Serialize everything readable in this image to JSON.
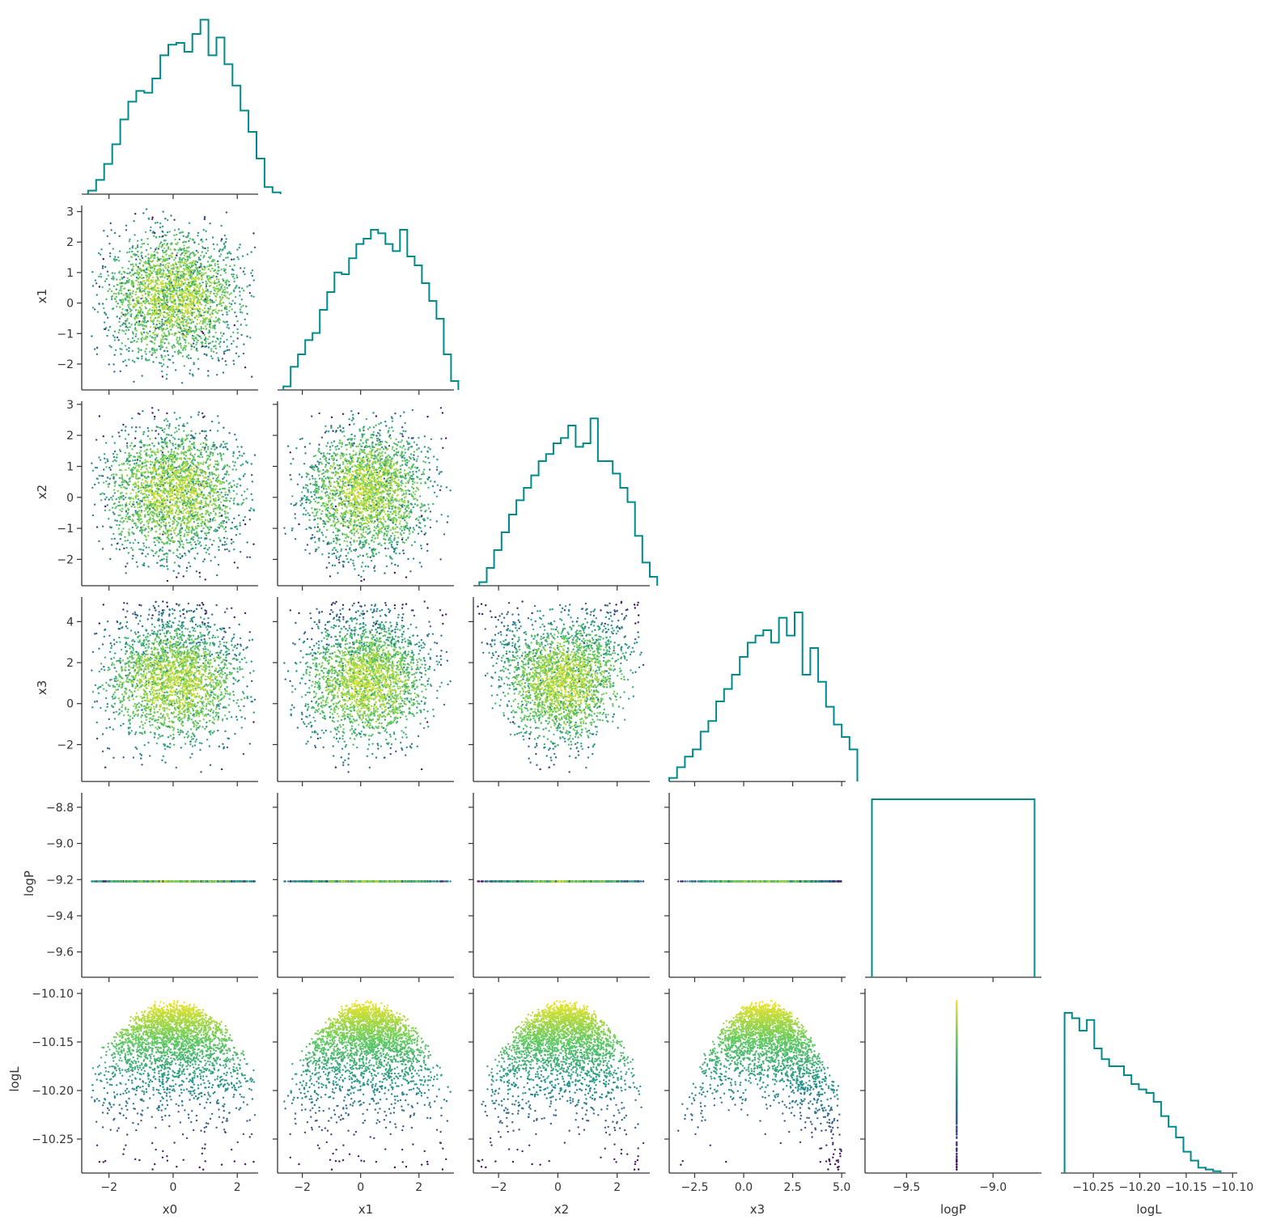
{
  "chart_data": {
    "type": "scatter",
    "variables": [
      "x0",
      "x1",
      "x2",
      "x3",
      "logP",
      "logL"
    ],
    "axis_labels": {
      "x": [
        "x0",
        "x1",
        "x2",
        "x3",
        "logP",
        "logL"
      ],
      "y": [
        "",
        "x1",
        "x2",
        "x3",
        "logP",
        "logL"
      ]
    },
    "ranges": {
      "x0": [
        -2.85,
        2.65
      ],
      "x1": [
        -2.85,
        3.2
      ],
      "x2": [
        -2.85,
        3.1
      ],
      "x3": [
        -3.8,
        5.2
      ],
      "logP": [
        -9.74,
        -8.72
      ],
      "logL": [
        -10.285,
        -10.095
      ]
    },
    "ticks": {
      "x0": [
        -2,
        0,
        2
      ],
      "x1": [
        -2,
        -1,
        0,
        1,
        2,
        3
      ],
      "x2": [
        -2,
        -1,
        0,
        1,
        2,
        3
      ],
      "x3": [
        -2.5,
        0,
        2.5,
        5
      ],
      "logP": [
        -9.6,
        -9.4,
        -9.2,
        -9.0,
        -8.8
      ],
      "logL": [
        -10.25,
        -10.2,
        -10.15,
        -10.1
      ]
    },
    "tick_labels": {
      "x0": [
        "−2",
        "0",
        "2"
      ],
      "x1": [
        "−2",
        "−1",
        "0",
        "1",
        "2",
        "3"
      ],
      "x2": [
        "−2",
        "−1",
        "0",
        "1",
        "2",
        "3"
      ],
      "x3": [
        "−2",
        "0",
        "2",
        "4"
      ],
      "logP": [
        "−9.6",
        "−9.4",
        "−9.2",
        "−9.0",
        "−8.8"
      ],
      "logL": [
        "−10.25",
        "−10.20",
        "−10.15",
        "−10.10"
      ]
    },
    "bottom_tick_labels": {
      "x0": {
        "ticks": [
          -2,
          0,
          2
        ],
        "labels": [
          "−2",
          "0",
          "2"
        ]
      },
      "x1": {
        "ticks": [
          -2,
          0,
          2
        ],
        "labels": [
          "−2",
          "0",
          "2"
        ]
      },
      "x2": {
        "ticks": [
          -2,
          0,
          2
        ],
        "labels": [
          "−2",
          "0",
          "2"
        ]
      },
      "x3": {
        "ticks": [
          -2.5,
          0,
          2.5,
          5
        ],
        "labels": [
          "−2.5",
          "0.0",
          "2.5",
          "5.0"
        ]
      },
      "logP": {
        "ticks": [
          -9.5,
          -9.0
        ],
        "labels": [
          "−9.5",
          "−9.0"
        ]
      },
      "logL": {
        "ticks": [
          -10.25,
          -10.2,
          -10.15,
          -10.1
        ],
        "labels": [
          "−10.25",
          "−10.20",
          "−10.15",
          "−10.10"
        ]
      }
    },
    "left_tick_labels": {
      "x1": {
        "ticks": [
          -2,
          -1,
          0,
          1,
          2,
          3
        ],
        "labels": [
          "−2",
          "−1",
          "0",
          "1",
          "2",
          "3"
        ]
      },
      "x2": {
        "ticks": [
          -2,
          -1,
          0,
          1,
          2,
          3
        ],
        "labels": [
          "−2",
          "−1",
          "0",
          "1",
          "2",
          "3"
        ]
      },
      "x3": {
        "ticks": [
          -2,
          0,
          2,
          4
        ],
        "labels": [
          "−2",
          "0",
          "2",
          "4"
        ]
      },
      "logP": {
        "ticks": [
          -9.6,
          -9.4,
          -9.2,
          -9.0,
          -8.8
        ],
        "labels": [
          "−9.6",
          "−9.4",
          "−9.2",
          "−9.0",
          "−8.8"
        ]
      },
      "logL": {
        "ticks": [
          -10.25,
          -10.2,
          -10.15,
          -10.1
        ],
        "labels": [
          "−10.25",
          "−10.20",
          "−10.15",
          "−10.10"
        ]
      }
    },
    "histograms": {
      "x0": {
        "start": -2.65,
        "width": 0.25,
        "counts": [
          0.02,
          0.08,
          0.17,
          0.28,
          0.42,
          0.52,
          0.58,
          0.57,
          0.65,
          0.78,
          0.84,
          0.85,
          0.8,
          0.9,
          0.98,
          0.78,
          0.88,
          0.73,
          0.61,
          0.47,
          0.35,
          0.2,
          0.04,
          0.01
        ]
      },
      "x1": {
        "start": -2.65,
        "width": 0.25,
        "counts": [
          0.02,
          0.13,
          0.2,
          0.28,
          0.32,
          0.45,
          0.55,
          0.66,
          0.65,
          0.74,
          0.82,
          0.85,
          0.9,
          0.88,
          0.82,
          0.78,
          0.9,
          0.75,
          0.7,
          0.6,
          0.5,
          0.4,
          0.2,
          0.05
        ]
      },
      "x2": {
        "start": -2.65,
        "width": 0.25,
        "counts": [
          0.02,
          0.1,
          0.2,
          0.3,
          0.4,
          0.48,
          0.55,
          0.62,
          0.7,
          0.74,
          0.8,
          0.83,
          0.9,
          0.78,
          0.8,
          0.94,
          0.7,
          0.7,
          0.63,
          0.55,
          0.47,
          0.28,
          0.13,
          0.05
        ]
      },
      "x3": {
        "start": -3.8,
        "width": 0.4,
        "counts": [
          0.02,
          0.08,
          0.14,
          0.18,
          0.28,
          0.34,
          0.45,
          0.52,
          0.6,
          0.7,
          0.78,
          0.82,
          0.85,
          0.78,
          0.92,
          0.82,
          0.95,
          0.6,
          0.75,
          0.56,
          0.42,
          0.32,
          0.25,
          0.18
        ]
      },
      "logP": {
        "edges": [
          -9.7,
          -8.76
        ],
        "counts": [
          1.0
        ]
      },
      "logL": {
        "start": -10.281,
        "width": 0.008,
        "counts": [
          0.9,
          0.87,
          0.8,
          0.86,
          0.7,
          0.64,
          0.6,
          0.6,
          0.55,
          0.5,
          0.47,
          0.45,
          0.4,
          0.32,
          0.26,
          0.2,
          0.12,
          0.07,
          0.03,
          0.02,
          0.01
        ]
      }
    },
    "scatter_points": 2500,
    "colormap": "viridis",
    "histogram_color": "#008b8b",
    "grid": false,
    "legend": "none"
  }
}
